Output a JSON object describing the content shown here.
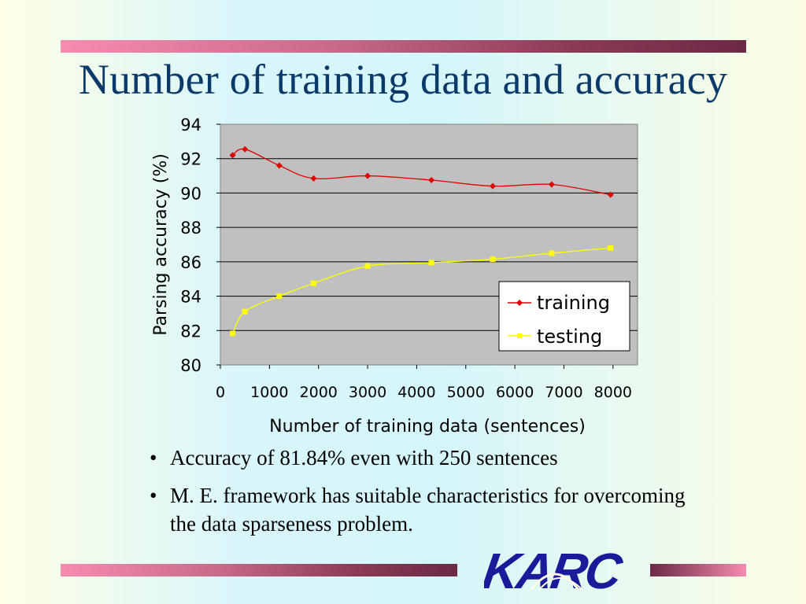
{
  "slide": {
    "title": "Number of training data and accuracy",
    "bullets": [
      "Accuracy of 81.84% even with 250 sentences",
      "M. E. framework has suitable characteristics for overcoming the data sparseness problem."
    ],
    "logo_text": "KARC"
  },
  "colors": {
    "title": "#0b3a6a",
    "training": "#e00000",
    "testing": "#ffff00",
    "plot_bg": "#c0c0c0",
    "logo": "#1a1a9a"
  },
  "chart_data": {
    "type": "line",
    "title": "",
    "xlabel": "Number of training data (sentences)",
    "ylabel": "Parsing accuracy (%)",
    "xlim": [
      0,
      8500
    ],
    "ylim": [
      80,
      94
    ],
    "xticks": [
      0,
      1000,
      2000,
      3000,
      4000,
      5000,
      6000,
      7000,
      8000
    ],
    "yticks": [
      80,
      82,
      84,
      86,
      88,
      90,
      92,
      94
    ],
    "grid": "horizontal",
    "legend_position": "bottom-right",
    "series": [
      {
        "name": "training",
        "x": [
          250,
          500,
          1200,
          1900,
          3000,
          4300,
          5550,
          6750,
          7950
        ],
        "y": [
          92.2,
          92.55,
          91.6,
          90.85,
          91.0,
          90.75,
          90.4,
          90.5,
          89.9
        ]
      },
      {
        "name": "testing",
        "x": [
          250,
          500,
          1200,
          1900,
          3000,
          4300,
          5550,
          6750,
          7950
        ],
        "y": [
          81.84,
          83.1,
          84.0,
          84.75,
          85.75,
          85.95,
          86.15,
          86.5,
          86.8
        ]
      }
    ]
  }
}
